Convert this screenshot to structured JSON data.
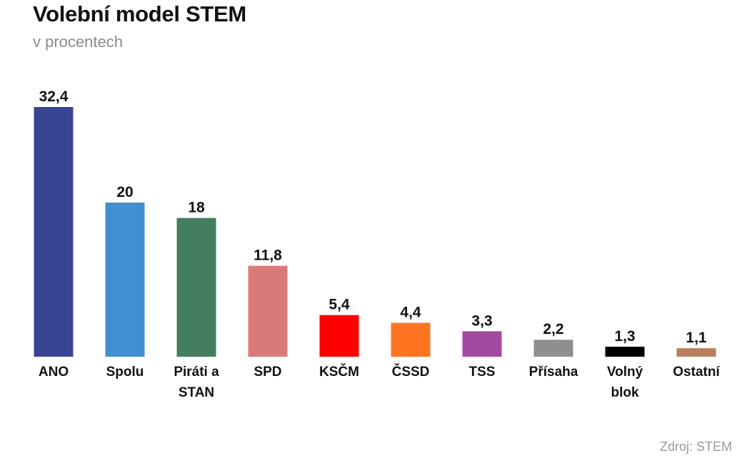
{
  "header": {
    "title": "Volební model STEM",
    "subtitle": "v procentech"
  },
  "footer": {
    "source": "Zdroj: STEM"
  },
  "chart_data": {
    "type": "bar",
    "title": "Volební model STEM",
    "subtitle": "v procentech",
    "xlabel": "",
    "ylabel": "",
    "grid": false,
    "legend": "none",
    "categories": [
      "ANO",
      "Spolu",
      "Piráti a STAN",
      "SPD",
      "KSČM",
      "ČSSD",
      "TSS",
      "Přísaha",
      "Volný blok",
      "Ostatní"
    ],
    "category_lines": [
      [
        "ANO"
      ],
      [
        "Spolu"
      ],
      [
        "Piráti a",
        "STAN"
      ],
      [
        "SPD"
      ],
      [
        "KSČM"
      ],
      [
        "ČSSD"
      ],
      [
        "TSS"
      ],
      [
        "Přísaha"
      ],
      [
        "Volný",
        "blok"
      ],
      [
        "Ostatní"
      ]
    ],
    "values": [
      32.4,
      20,
      18,
      11.8,
      5.4,
      4.4,
      3.3,
      2.2,
      1.3,
      1.1
    ],
    "value_labels": [
      "32,4",
      "20",
      "18",
      "11,8",
      "5,4",
      "4,4",
      "3,3",
      "2,2",
      "1,3",
      "1,1"
    ],
    "colors": [
      "#3a4495",
      "#3f8fd2",
      "#437e5e",
      "#da7a78",
      "#ff0000",
      "#ff7421",
      "#a24aa1",
      "#8f8f8f",
      "#000000",
      "#bb7e5c"
    ],
    "ylim": [
      0,
      32.4
    ]
  }
}
